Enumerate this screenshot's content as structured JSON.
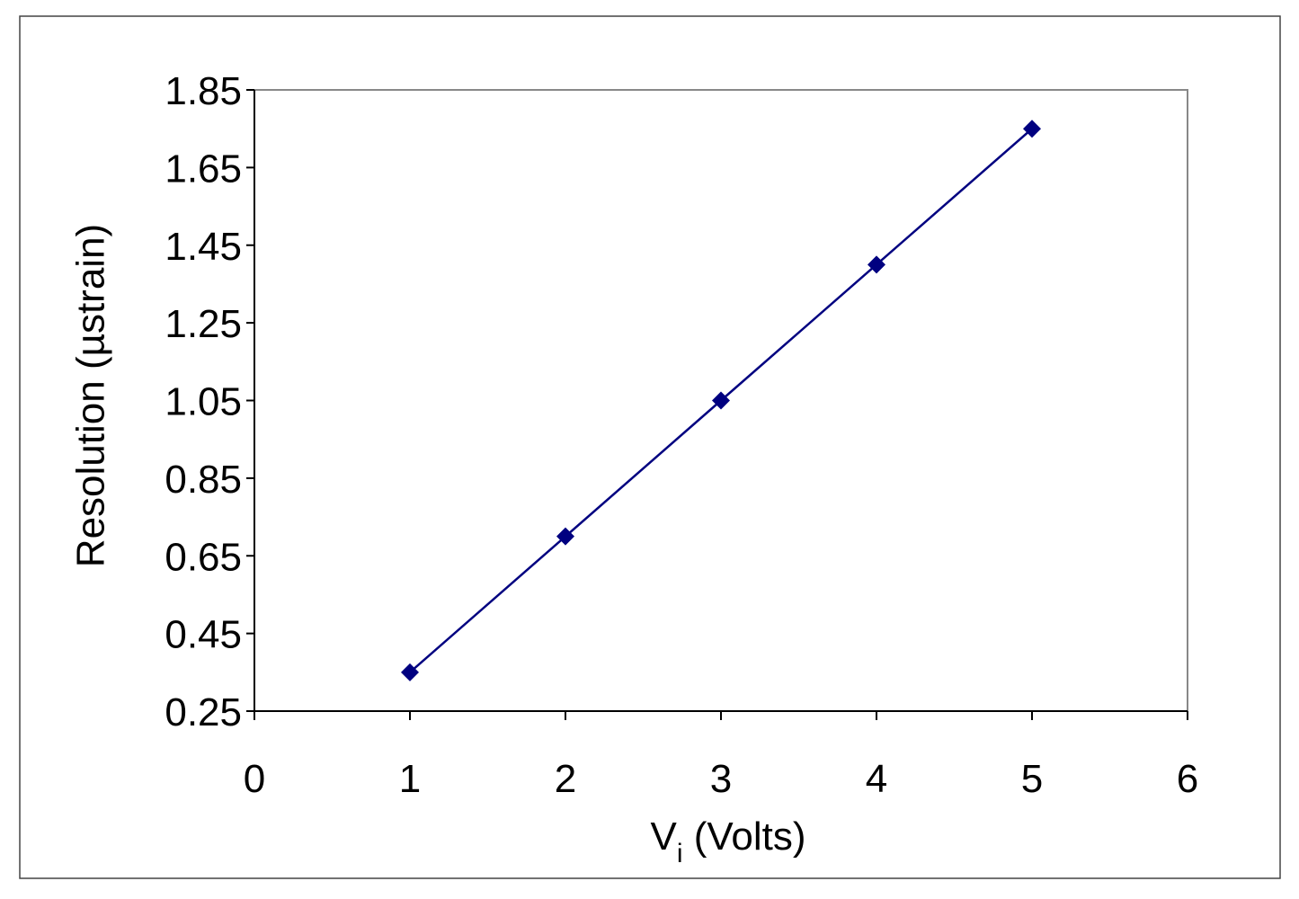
{
  "chart_data": {
    "type": "line",
    "x_label": [
      "V",
      "i",
      " (Volts)"
    ],
    "y_label": "Resolution (µstrain)",
    "x": [
      1,
      2,
      3,
      4,
      5
    ],
    "values": [
      0.35,
      0.7,
      1.05,
      1.4,
      1.75
    ],
    "color": "#000080",
    "marker": "diamond",
    "xlim": [
      0,
      6
    ],
    "xticks": [
      0,
      1,
      2,
      3,
      4,
      5,
      6
    ],
    "ylim": [
      0.25,
      1.85
    ],
    "yticks": [
      0.25,
      0.45,
      0.65,
      0.85,
      1.05,
      1.25,
      1.45,
      1.65,
      1.85
    ],
    "grid": false
  }
}
